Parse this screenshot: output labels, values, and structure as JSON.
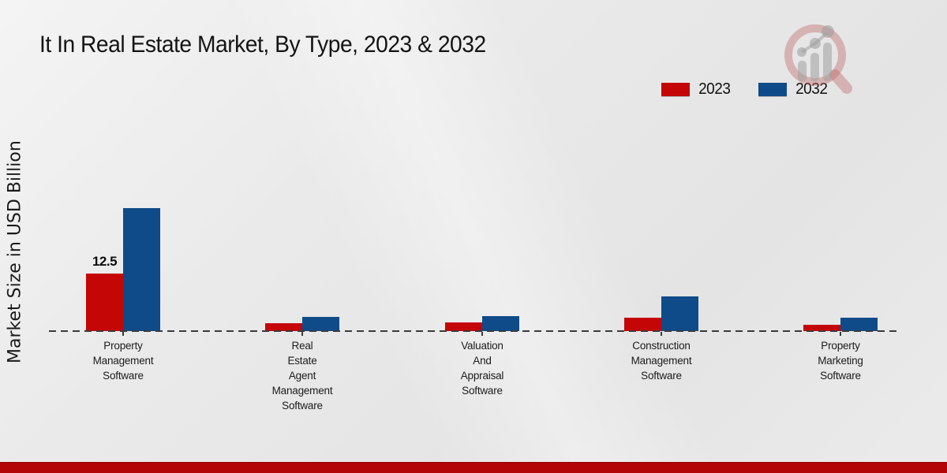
{
  "title": "It In Real Estate Market, By Type, 2023 & 2032",
  "ylabel": "Market Size in USD Billion",
  "legend": [
    {
      "label": "2023",
      "color": "#c40606"
    },
    {
      "label": "2032",
      "color": "#0e4b88"
    }
  ],
  "chart_data": {
    "type": "bar",
    "title": "It In Real Estate Market, By Type, 2023 & 2032",
    "ylabel": "Market Size in USD Billion",
    "xlabel": "",
    "categories": [
      "Property Management Software",
      "Real Estate Agent Management Software",
      "Valuation And Appraisal Software",
      "Construction Management Software",
      "Property Marketing Software"
    ],
    "series": [
      {
        "name": "2023",
        "color": "#c40606",
        "values": [
          12.5,
          1.7,
          1.9,
          2.9,
          1.4
        ],
        "data_labels": [
          "12.5",
          null,
          null,
          null,
          null
        ]
      },
      {
        "name": "2032",
        "color": "#0e4b88",
        "values": [
          26.7,
          3.1,
          3.3,
          7.5,
          2.9
        ],
        "data_labels": [
          null,
          null,
          null,
          null,
          null
        ]
      }
    ],
    "ylim": [
      0,
      30
    ],
    "gridlines": false,
    "baseline_style": "dashed",
    "legend_position": "top-right"
  },
  "branding": {
    "logo_icon": "magnifier-bar-chart-logo",
    "stripe_color": "#b30505",
    "logo_ring_color": "#c98a8a",
    "logo_bar_color": "#bdbdbd"
  }
}
